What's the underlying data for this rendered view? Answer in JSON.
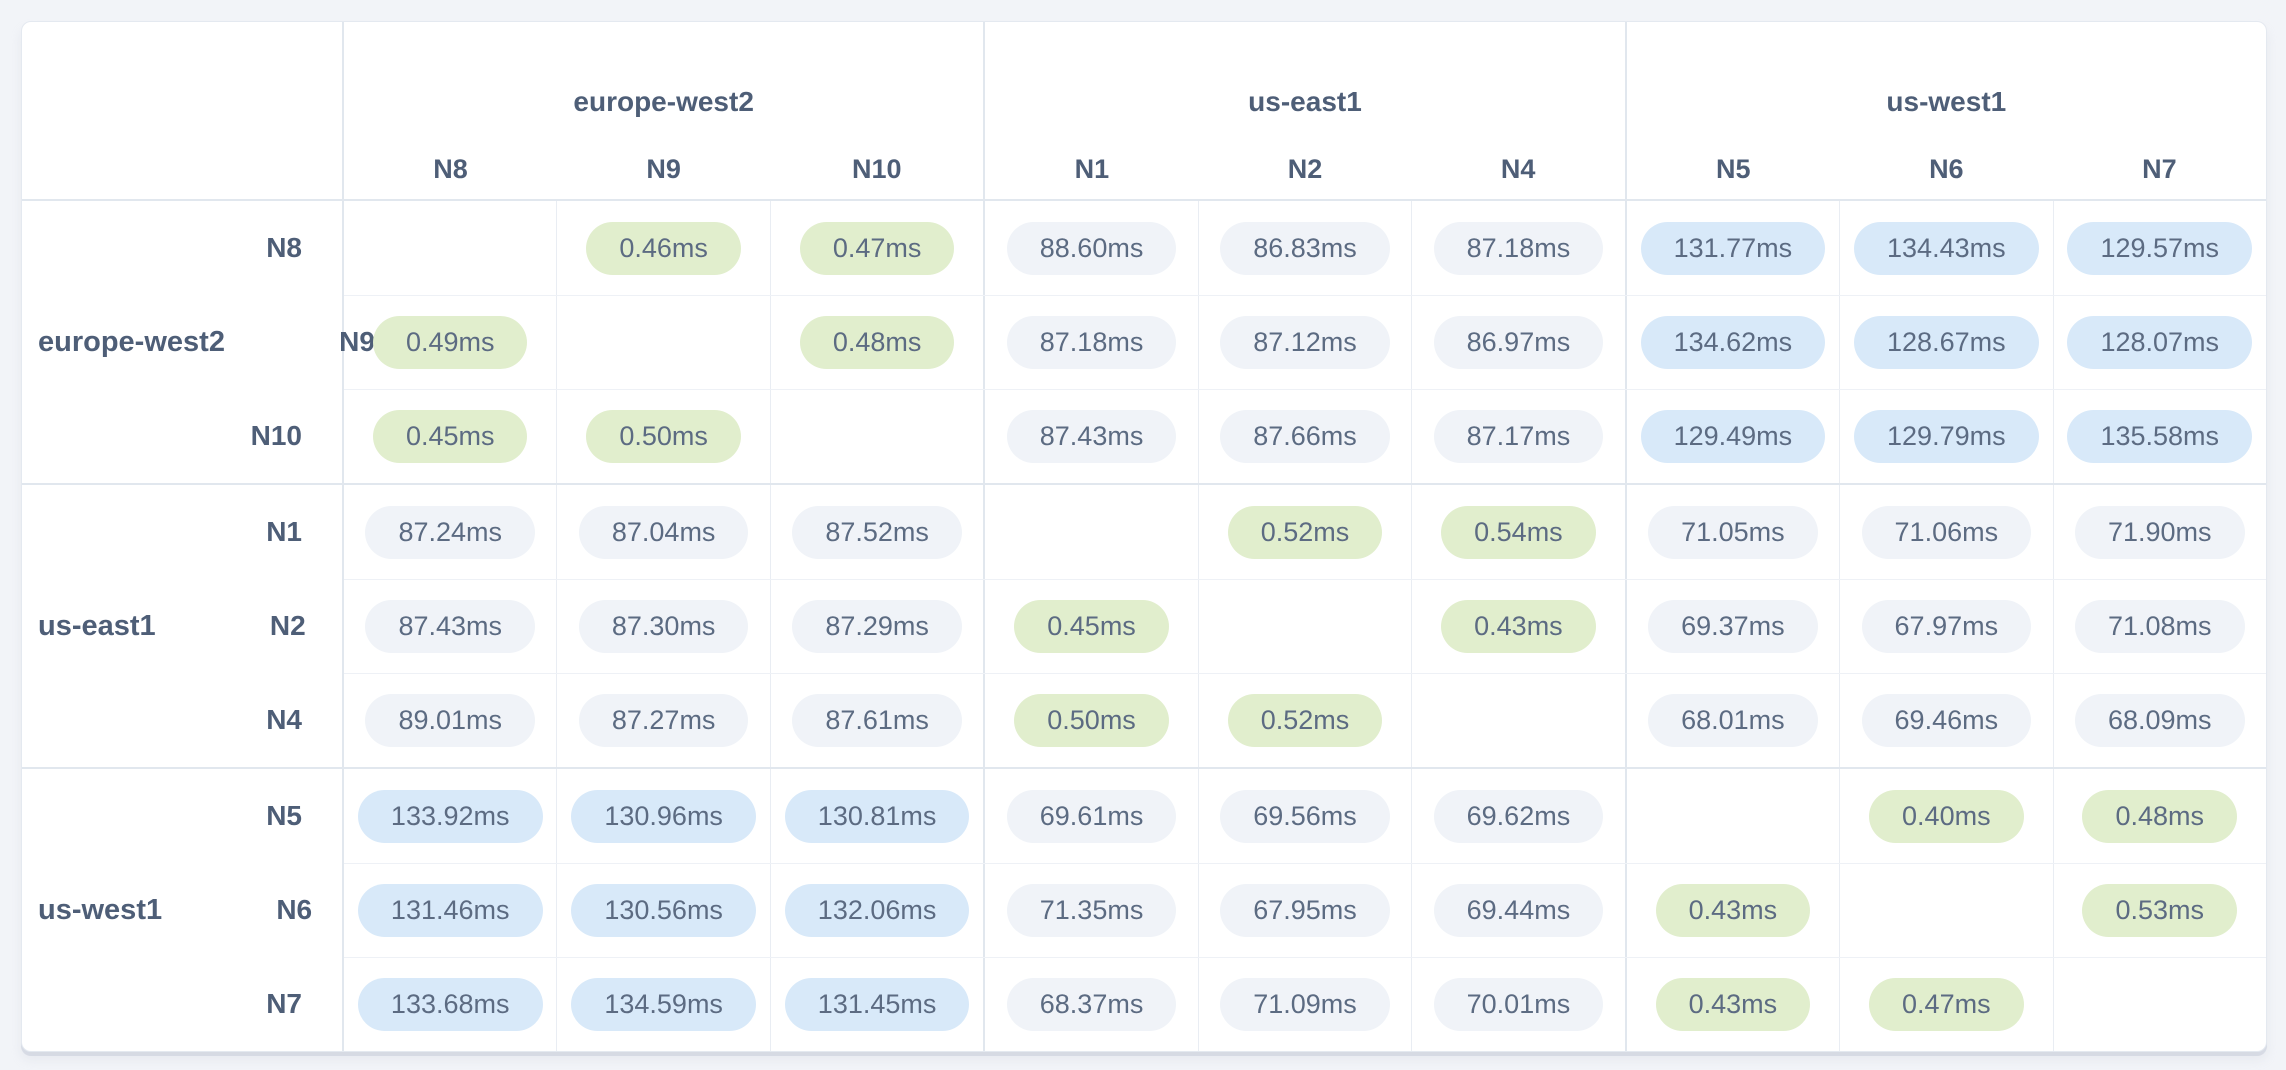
{
  "colors": {
    "page_bg": "#f2f4f8",
    "card_bg": "#ffffff",
    "low_latency_bg": "#e1eecd",
    "mid_latency_bg": "#f0f3f8",
    "high_latency_bg": "#d8e9f9",
    "value_text": "#5c6b82",
    "label_text": "#4e5e77"
  },
  "matrix": {
    "unit": "ms",
    "column_groups": [
      {
        "region": "europe-west2",
        "nodes": [
          "N8",
          "N9",
          "N10"
        ]
      },
      {
        "region": "us-east1",
        "nodes": [
          "N1",
          "N2",
          "N4"
        ]
      },
      {
        "region": "us-west1",
        "nodes": [
          "N5",
          "N6",
          "N7"
        ]
      }
    ],
    "row_groups": [
      {
        "region": "europe-west2",
        "rows": [
          {
            "node": "N8",
            "values": [
              null,
              "0.46ms",
              "0.47ms",
              "88.60ms",
              "86.83ms",
              "87.18ms",
              "131.77ms",
              "134.43ms",
              "129.57ms"
            ]
          },
          {
            "node": "N9",
            "values": [
              "0.49ms",
              null,
              "0.48ms",
              "87.18ms",
              "87.12ms",
              "86.97ms",
              "134.62ms",
              "128.67ms",
              "128.07ms"
            ]
          },
          {
            "node": "N10",
            "values": [
              "0.45ms",
              "0.50ms",
              null,
              "87.43ms",
              "87.66ms",
              "87.17ms",
              "129.49ms",
              "129.79ms",
              "135.58ms"
            ]
          }
        ]
      },
      {
        "region": "us-east1",
        "rows": [
          {
            "node": "N1",
            "values": [
              "87.24ms",
              "87.04ms",
              "87.52ms",
              null,
              "0.52ms",
              "0.54ms",
              "71.05ms",
              "71.06ms",
              "71.90ms"
            ]
          },
          {
            "node": "N2",
            "values": [
              "87.43ms",
              "87.30ms",
              "87.29ms",
              "0.45ms",
              null,
              "0.43ms",
              "69.37ms",
              "67.97ms",
              "71.08ms"
            ]
          },
          {
            "node": "N4",
            "values": [
              "89.01ms",
              "87.27ms",
              "87.61ms",
              "0.50ms",
              "0.52ms",
              null,
              "68.01ms",
              "69.46ms",
              "68.09ms"
            ]
          }
        ]
      },
      {
        "region": "us-west1",
        "rows": [
          {
            "node": "N5",
            "values": [
              "133.92ms",
              "130.96ms",
              "130.81ms",
              "69.61ms",
              "69.56ms",
              "69.62ms",
              null,
              "0.40ms",
              "0.48ms"
            ]
          },
          {
            "node": "N6",
            "values": [
              "131.46ms",
              "130.56ms",
              "132.06ms",
              "71.35ms",
              "67.95ms",
              "69.44ms",
              "0.43ms",
              null,
              "0.53ms"
            ]
          },
          {
            "node": "N7",
            "values": [
              "133.68ms",
              "134.59ms",
              "131.45ms",
              "68.37ms",
              "71.09ms",
              "70.01ms",
              "0.43ms",
              "0.47ms",
              null
            ]
          }
        ]
      }
    ]
  }
}
